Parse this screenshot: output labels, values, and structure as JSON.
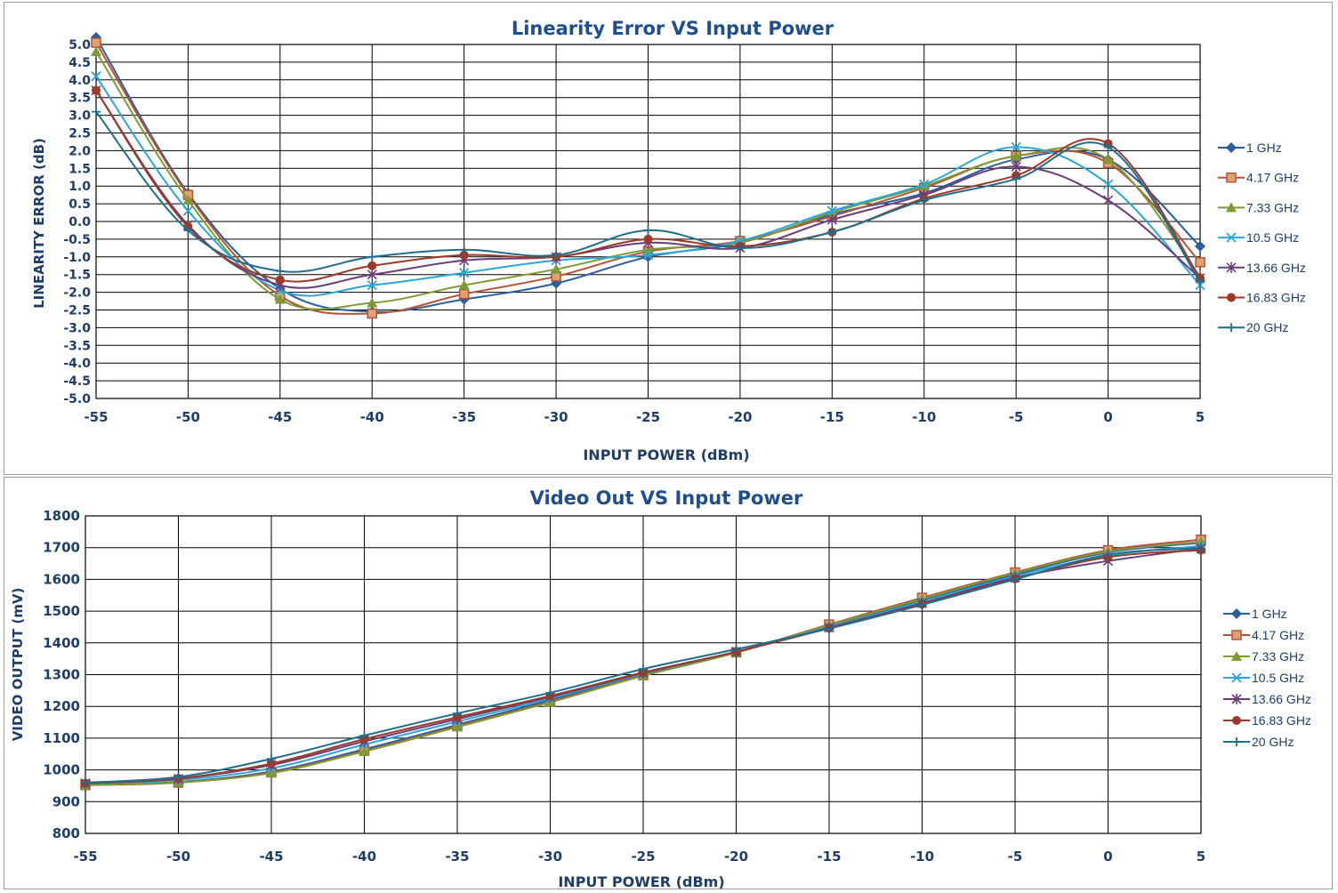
{
  "chart_data": [
    {
      "type": "line",
      "title": "Linearity Error VS Input Power",
      "xlabel": "INPUT POWER (dBm)",
      "ylabel": "LINEARITY ERROR (dB)",
      "x": [
        -55,
        -50,
        -45,
        -40,
        -35,
        -30,
        -25,
        -20,
        -15,
        -10,
        -5,
        0,
        5
      ],
      "xlim": [
        -55,
        5
      ],
      "ylim": [
        -5,
        5
      ],
      "x_ticks": [
        "-55",
        "-50",
        "-45",
        "-40",
        "-35",
        "-30",
        "-25",
        "-20",
        "-15",
        "-10",
        "-5",
        "0",
        "5"
      ],
      "y_ticks": [
        "5.0",
        "4.5",
        "4.0",
        "3.5",
        "3.0",
        "2.5",
        "2.0",
        "1.5",
        "1.0",
        "0.5",
        "0.0",
        "-0.5",
        "-1.0",
        "-1.5",
        "-2.0",
        "-2.5",
        "-3.0",
        "-3.5",
        "-4.0",
        "-4.5",
        "-5.0"
      ],
      "grid": true,
      "legend": "right",
      "series": [
        {
          "name": "1 GHz",
          "color": "#2a5f9e",
          "marker": "diamond",
          "values": [
            5.2,
            0.8,
            -1.9,
            -2.55,
            -2.2,
            -1.75,
            -1.0,
            -0.6,
            0.2,
            0.8,
            1.75,
            1.75,
            -0.7
          ]
        },
        {
          "name": "4.17 GHz",
          "color": "#b5533a",
          "marker": "square",
          "values": [
            5.05,
            0.75,
            -2.1,
            -2.6,
            -2.05,
            -1.55,
            -0.85,
            -0.55,
            0.15,
            0.95,
            1.85,
            1.65,
            -1.15
          ]
        },
        {
          "name": "7.33 GHz",
          "color": "#7e9a35",
          "marker": "triangle",
          "values": [
            4.8,
            0.6,
            -2.2,
            -2.3,
            -1.8,
            -1.35,
            -0.8,
            -0.6,
            0.25,
            1.0,
            1.85,
            1.75,
            -1.55
          ]
        },
        {
          "name": "10.5 GHz",
          "color": "#2aa7d8",
          "marker": "x",
          "values": [
            4.1,
            0.3,
            -1.95,
            -1.8,
            -1.45,
            -1.1,
            -0.95,
            -0.55,
            0.3,
            1.05,
            2.1,
            1.05,
            -1.8
          ]
        },
        {
          "name": "13.66 GHz",
          "color": "#6a3d7a",
          "marker": "star",
          "values": [
            3.7,
            -0.1,
            -1.8,
            -1.5,
            -1.1,
            -1.0,
            -0.6,
            -0.75,
            0.05,
            0.75,
            1.55,
            0.6,
            -1.6
          ]
        },
        {
          "name": "16.83 GHz",
          "color": "#9b3a2a",
          "marker": "circle",
          "values": [
            3.7,
            -0.15,
            -1.65,
            -1.25,
            -0.95,
            -1.0,
            -0.5,
            -0.7,
            -0.3,
            0.65,
            1.3,
            2.2,
            -1.6
          ]
        },
        {
          "name": "20 GHz",
          "color": "#1f6e8c",
          "marker": "plus",
          "values": [
            3.1,
            -0.25,
            -1.4,
            -1.0,
            -0.8,
            -0.95,
            -0.25,
            -0.75,
            -0.3,
            0.6,
            1.2,
            2.1,
            -1.7
          ]
        }
      ]
    },
    {
      "type": "line",
      "title": "Video Out VS Input Power",
      "xlabel": "INPUT POWER (dBm)",
      "ylabel": "VIDEO OUTPUT (mV)",
      "x": [
        -55,
        -50,
        -45,
        -40,
        -35,
        -30,
        -25,
        -20,
        -15,
        -10,
        -5,
        0,
        5
      ],
      "xlim": [
        -55,
        5
      ],
      "ylim": [
        800,
        1800
      ],
      "x_ticks": [
        "-55",
        "-50",
        "-45",
        "-40",
        "-35",
        "-30",
        "-25",
        "-20",
        "-15",
        "-10",
        "-5",
        "0",
        "5"
      ],
      "y_ticks": [
        "1800",
        "1700",
        "1600",
        "1500",
        "1400",
        "1300",
        "1200",
        "1100",
        "1000",
        "900",
        "800"
      ],
      "grid": true,
      "legend": "right",
      "series": [
        {
          "name": "1 GHz",
          "color": "#2a5f9e",
          "marker": "diamond",
          "values": [
            955,
            962,
            995,
            1065,
            1142,
            1220,
            1300,
            1372,
            1455,
            1535,
            1615,
            1685,
            1715
          ]
        },
        {
          "name": "4.17 GHz",
          "color": "#b5533a",
          "marker": "square",
          "values": [
            952,
            960,
            992,
            1060,
            1138,
            1215,
            1298,
            1370,
            1458,
            1542,
            1622,
            1692,
            1725
          ]
        },
        {
          "name": "7.33 GHz",
          "color": "#7e9a35",
          "marker": "triangle",
          "values": [
            953,
            961,
            990,
            1058,
            1135,
            1213,
            1296,
            1369,
            1456,
            1538,
            1620,
            1688,
            1718
          ]
        },
        {
          "name": "10.5 GHz",
          "color": "#2aa7d8",
          "marker": "x",
          "values": [
            957,
            968,
            1005,
            1080,
            1152,
            1225,
            1303,
            1372,
            1450,
            1530,
            1610,
            1675,
            1705
          ]
        },
        {
          "name": "13.66 GHz",
          "color": "#6a3d7a",
          "marker": "star",
          "values": [
            958,
            972,
            1015,
            1090,
            1160,
            1230,
            1305,
            1372,
            1448,
            1525,
            1605,
            1658,
            1697
          ]
        },
        {
          "name": "16.83 GHz",
          "color": "#9b3a2a",
          "marker": "circle",
          "values": [
            958,
            973,
            1020,
            1097,
            1166,
            1233,
            1307,
            1372,
            1446,
            1522,
            1602,
            1670,
            1692
          ]
        },
        {
          "name": "20 GHz",
          "color": "#1f6e8c",
          "marker": "plus",
          "values": [
            960,
            978,
            1035,
            1108,
            1178,
            1243,
            1318,
            1380,
            1445,
            1520,
            1600,
            1678,
            1698
          ]
        }
      ]
    }
  ]
}
